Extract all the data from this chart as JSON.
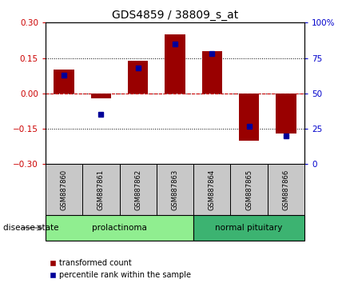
{
  "title": "GDS4859 / 38809_s_at",
  "samples": [
    "GSM887860",
    "GSM887861",
    "GSM887862",
    "GSM887863",
    "GSM887864",
    "GSM887865",
    "GSM887866"
  ],
  "red_values": [
    0.1,
    -0.02,
    0.14,
    0.25,
    0.18,
    -0.2,
    -0.17
  ],
  "blue_values": [
    63,
    35,
    68,
    85,
    78,
    27,
    20
  ],
  "ylim_left": [
    -0.3,
    0.3
  ],
  "ylim_right": [
    0,
    100
  ],
  "yticks_left": [
    -0.3,
    -0.15,
    0,
    0.15,
    0.3
  ],
  "yticks_right": [
    0,
    25,
    50,
    75,
    100
  ],
  "groups": [
    {
      "label": "prolactinoma",
      "indices": [
        0,
        1,
        2,
        3
      ],
      "color": "#90EE90"
    },
    {
      "label": "normal pituitary",
      "indices": [
        4,
        5,
        6
      ],
      "color": "#3CB371"
    }
  ],
  "bar_color": "#990000",
  "dot_color": "#000099",
  "bar_width": 0.55,
  "sample_box_color": "#C8C8C8",
  "zero_line_color": "#CC0000",
  "left_label_color": "#CC0000",
  "right_label_color": "#0000CC",
  "disease_state_label": "disease state"
}
